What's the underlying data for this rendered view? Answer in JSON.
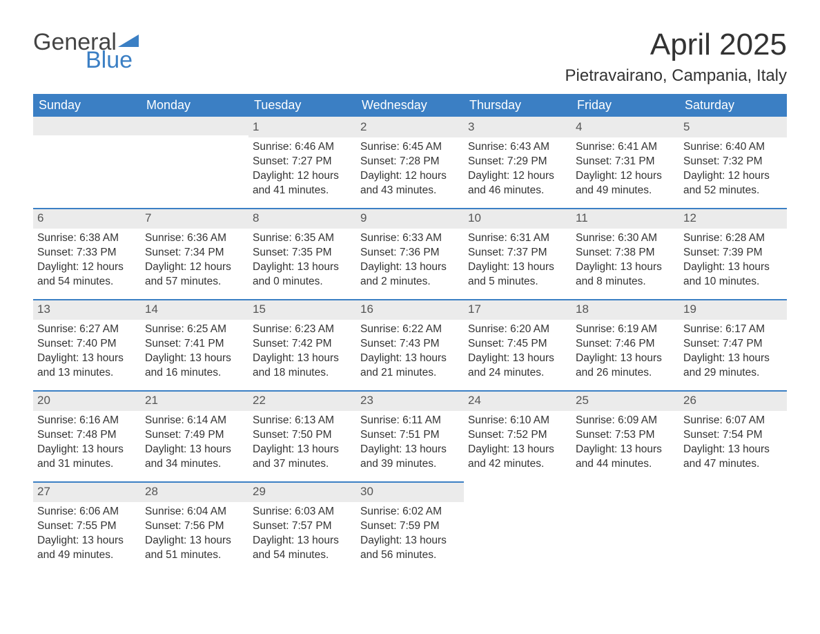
{
  "logo": {
    "top": "General",
    "bottom": "Blue",
    "triangle_color": "#3b7fc4"
  },
  "title": "April 2025",
  "location": "Pietravairano, Campania, Italy",
  "colors": {
    "header_bg": "#3b7fc4",
    "header_text": "#ffffff",
    "daynum_bg": "#ebebeb",
    "daynum_border": "#3b7fc4",
    "body_text": "#333333"
  },
  "typography": {
    "title_fontsize": 44,
    "location_fontsize": 24,
    "dayhead_fontsize": 18,
    "daynum_fontsize": 17,
    "body_fontsize": 15.5
  },
  "day_headers": [
    "Sunday",
    "Monday",
    "Tuesday",
    "Wednesday",
    "Thursday",
    "Friday",
    "Saturday"
  ],
  "weeks": [
    [
      {
        "num": "",
        "sunrise": "",
        "sunset": "",
        "daylight": ""
      },
      {
        "num": "",
        "sunrise": "",
        "sunset": "",
        "daylight": ""
      },
      {
        "num": "1",
        "sunrise": "Sunrise: 6:46 AM",
        "sunset": "Sunset: 7:27 PM",
        "daylight": "Daylight: 12 hours and 41 minutes."
      },
      {
        "num": "2",
        "sunrise": "Sunrise: 6:45 AM",
        "sunset": "Sunset: 7:28 PM",
        "daylight": "Daylight: 12 hours and 43 minutes."
      },
      {
        "num": "3",
        "sunrise": "Sunrise: 6:43 AM",
        "sunset": "Sunset: 7:29 PM",
        "daylight": "Daylight: 12 hours and 46 minutes."
      },
      {
        "num": "4",
        "sunrise": "Sunrise: 6:41 AM",
        "sunset": "Sunset: 7:31 PM",
        "daylight": "Daylight: 12 hours and 49 minutes."
      },
      {
        "num": "5",
        "sunrise": "Sunrise: 6:40 AM",
        "sunset": "Sunset: 7:32 PM",
        "daylight": "Daylight: 12 hours and 52 minutes."
      }
    ],
    [
      {
        "num": "6",
        "sunrise": "Sunrise: 6:38 AM",
        "sunset": "Sunset: 7:33 PM",
        "daylight": "Daylight: 12 hours and 54 minutes."
      },
      {
        "num": "7",
        "sunrise": "Sunrise: 6:36 AM",
        "sunset": "Sunset: 7:34 PM",
        "daylight": "Daylight: 12 hours and 57 minutes."
      },
      {
        "num": "8",
        "sunrise": "Sunrise: 6:35 AM",
        "sunset": "Sunset: 7:35 PM",
        "daylight": "Daylight: 13 hours and 0 minutes."
      },
      {
        "num": "9",
        "sunrise": "Sunrise: 6:33 AM",
        "sunset": "Sunset: 7:36 PM",
        "daylight": "Daylight: 13 hours and 2 minutes."
      },
      {
        "num": "10",
        "sunrise": "Sunrise: 6:31 AM",
        "sunset": "Sunset: 7:37 PM",
        "daylight": "Daylight: 13 hours and 5 minutes."
      },
      {
        "num": "11",
        "sunrise": "Sunrise: 6:30 AM",
        "sunset": "Sunset: 7:38 PM",
        "daylight": "Daylight: 13 hours and 8 minutes."
      },
      {
        "num": "12",
        "sunrise": "Sunrise: 6:28 AM",
        "sunset": "Sunset: 7:39 PM",
        "daylight": "Daylight: 13 hours and 10 minutes."
      }
    ],
    [
      {
        "num": "13",
        "sunrise": "Sunrise: 6:27 AM",
        "sunset": "Sunset: 7:40 PM",
        "daylight": "Daylight: 13 hours and 13 minutes."
      },
      {
        "num": "14",
        "sunrise": "Sunrise: 6:25 AM",
        "sunset": "Sunset: 7:41 PM",
        "daylight": "Daylight: 13 hours and 16 minutes."
      },
      {
        "num": "15",
        "sunrise": "Sunrise: 6:23 AM",
        "sunset": "Sunset: 7:42 PM",
        "daylight": "Daylight: 13 hours and 18 minutes."
      },
      {
        "num": "16",
        "sunrise": "Sunrise: 6:22 AM",
        "sunset": "Sunset: 7:43 PM",
        "daylight": "Daylight: 13 hours and 21 minutes."
      },
      {
        "num": "17",
        "sunrise": "Sunrise: 6:20 AM",
        "sunset": "Sunset: 7:45 PM",
        "daylight": "Daylight: 13 hours and 24 minutes."
      },
      {
        "num": "18",
        "sunrise": "Sunrise: 6:19 AM",
        "sunset": "Sunset: 7:46 PM",
        "daylight": "Daylight: 13 hours and 26 minutes."
      },
      {
        "num": "19",
        "sunrise": "Sunrise: 6:17 AM",
        "sunset": "Sunset: 7:47 PM",
        "daylight": "Daylight: 13 hours and 29 minutes."
      }
    ],
    [
      {
        "num": "20",
        "sunrise": "Sunrise: 6:16 AM",
        "sunset": "Sunset: 7:48 PM",
        "daylight": "Daylight: 13 hours and 31 minutes."
      },
      {
        "num": "21",
        "sunrise": "Sunrise: 6:14 AM",
        "sunset": "Sunset: 7:49 PM",
        "daylight": "Daylight: 13 hours and 34 minutes."
      },
      {
        "num": "22",
        "sunrise": "Sunrise: 6:13 AM",
        "sunset": "Sunset: 7:50 PM",
        "daylight": "Daylight: 13 hours and 37 minutes."
      },
      {
        "num": "23",
        "sunrise": "Sunrise: 6:11 AM",
        "sunset": "Sunset: 7:51 PM",
        "daylight": "Daylight: 13 hours and 39 minutes."
      },
      {
        "num": "24",
        "sunrise": "Sunrise: 6:10 AM",
        "sunset": "Sunset: 7:52 PM",
        "daylight": "Daylight: 13 hours and 42 minutes."
      },
      {
        "num": "25",
        "sunrise": "Sunrise: 6:09 AM",
        "sunset": "Sunset: 7:53 PM",
        "daylight": "Daylight: 13 hours and 44 minutes."
      },
      {
        "num": "26",
        "sunrise": "Sunrise: 6:07 AM",
        "sunset": "Sunset: 7:54 PM",
        "daylight": "Daylight: 13 hours and 47 minutes."
      }
    ],
    [
      {
        "num": "27",
        "sunrise": "Sunrise: 6:06 AM",
        "sunset": "Sunset: 7:55 PM",
        "daylight": "Daylight: 13 hours and 49 minutes."
      },
      {
        "num": "28",
        "sunrise": "Sunrise: 6:04 AM",
        "sunset": "Sunset: 7:56 PM",
        "daylight": "Daylight: 13 hours and 51 minutes."
      },
      {
        "num": "29",
        "sunrise": "Sunrise: 6:03 AM",
        "sunset": "Sunset: 7:57 PM",
        "daylight": "Daylight: 13 hours and 54 minutes."
      },
      {
        "num": "30",
        "sunrise": "Sunrise: 6:02 AM",
        "sunset": "Sunset: 7:59 PM",
        "daylight": "Daylight: 13 hours and 56 minutes."
      },
      {
        "num": "",
        "sunrise": "",
        "sunset": "",
        "daylight": ""
      },
      {
        "num": "",
        "sunrise": "",
        "sunset": "",
        "daylight": ""
      },
      {
        "num": "",
        "sunrise": "",
        "sunset": "",
        "daylight": ""
      }
    ]
  ]
}
